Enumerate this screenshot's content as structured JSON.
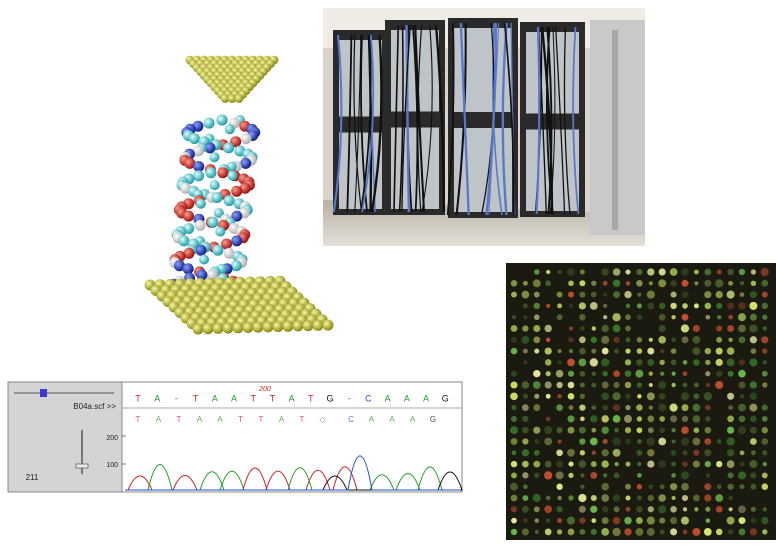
{
  "chromatogram": {
    "position_label": "200",
    "file_label": "B04a.scf >>",
    "called_bases": [
      "T",
      "A",
      "-",
      "T",
      "A",
      "A",
      "T",
      "T",
      "A",
      "T",
      "G",
      "-",
      "C",
      "A",
      "A",
      "A",
      "G"
    ],
    "reference_bases": [
      "T",
      "A",
      "T",
      "A",
      "A",
      "T",
      "T",
      "A",
      "T",
      "◇",
      "C",
      "A",
      "A",
      "A",
      "G"
    ],
    "axis_labels": [
      "200",
      "100"
    ],
    "slider_value": "211"
  }
}
